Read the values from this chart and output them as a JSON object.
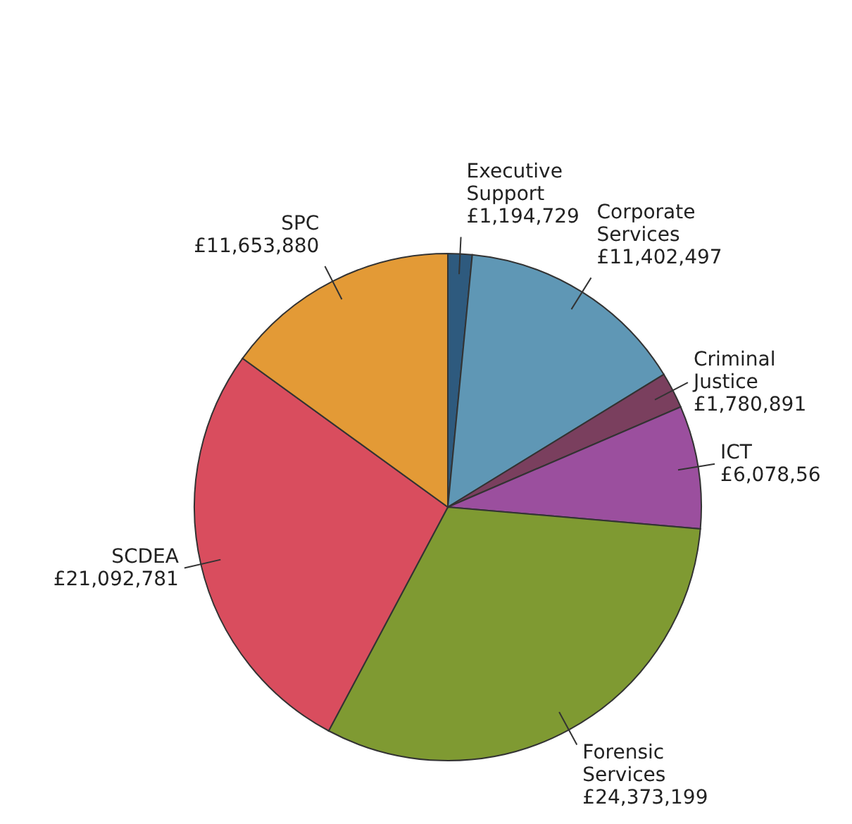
{
  "chart_data": {
    "type": "pie",
    "categories": [
      "Executive Support",
      "Corporate Services",
      "Criminal Justice",
      "ICT",
      "Forensic Services",
      "SCDEA",
      "SPC"
    ],
    "values": [
      1194729,
      11402497,
      1780891,
      6078560,
      24373199,
      21092781,
      11653880
    ],
    "value_labels": [
      "£1,194,729",
      "£11,402,497",
      "£1,780,891",
      "£6,078,56",
      "£24,373,199",
      "£21,092,781",
      "£11,653,880"
    ],
    "colors": [
      "#2e5a7e",
      "#5f97b5",
      "#7a3f5e",
      "#9b4f9e",
      "#7f9a32",
      "#d94d5e",
      "#e39a36"
    ],
    "legend": false
  }
}
